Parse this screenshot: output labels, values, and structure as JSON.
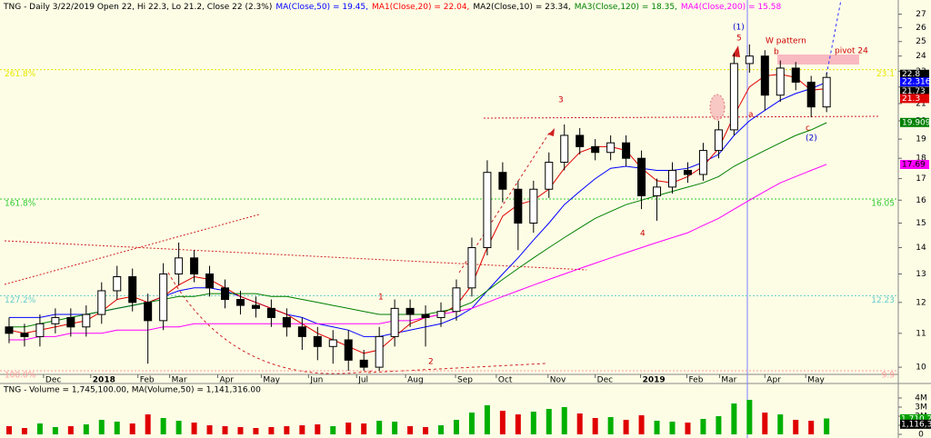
{
  "chart_data": {
    "type": "candlestick",
    "log_scale": true,
    "header_items": [
      {
        "text": "TNG - Daily 3/22/2019 Open 22, Hi 22.3, Lo 21.2, Close 22 (2.3%)",
        "color": "#000000"
      },
      {
        "text": "MA(Close,50) = 19.45,",
        "color": "#0000ff"
      },
      {
        "text": "MA1(Close,20) = 22.04,",
        "color": "#ff0000"
      },
      {
        "text": "MA2(Close,10) = 23.34,",
        "color": "#000000"
      },
      {
        "text": "MA3(Close,120) = 18.35,",
        "color": "#008000"
      },
      {
        "text": "MA4(Close,200) = 15.58",
        "color": "#ff00ff"
      }
    ],
    "x": [
      0.2,
      0.54,
      0.88,
      1.22,
      1.56,
      1.9,
      2.24,
      2.58,
      2.92,
      3.26,
      3.6,
      3.94,
      4.28,
      4.62,
      4.96,
      5.3,
      5.64,
      5.98,
      6.32,
      6.66,
      7.0,
      7.34,
      7.68,
      8.02,
      8.36,
      8.7,
      9.04,
      9.38,
      9.72,
      10.06,
      10.4,
      10.74,
      11.08,
      11.42,
      11.76,
      12.1,
      12.44,
      12.78,
      13.12,
      13.46,
      13.8,
      14.14,
      14.48,
      14.82,
      15.16,
      15.5,
      15.84,
      16.18,
      16.52,
      16.86,
      17.2,
      17.54,
      17.88,
      18.22
    ],
    "open": [
      11.2,
      11.0,
      10.9,
      11.3,
      11.5,
      11.2,
      11.6,
      12.4,
      12.9,
      12.0,
      11.4,
      13.0,
      13.6,
      13.0,
      12.5,
      12.1,
      11.9,
      11.8,
      11.5,
      11.2,
      10.9,
      10.6,
      10.8,
      10.2,
      10.0,
      10.9,
      11.8,
      11.6,
      11.5,
      11.7,
      12.5,
      14.0,
      17.3,
      16.5,
      15.0,
      16.5,
      17.8,
      19.2,
      18.6,
      18.3,
      18.8,
      18.0,
      16.2,
      16.6,
      17.4,
      17.2,
      18.4,
      19.5,
      23.5,
      24.0,
      21.5,
      23.2,
      22.3,
      20.8
    ],
    "high": [
      11.5,
      11.3,
      11.6,
      11.8,
      11.8,
      11.9,
      12.7,
      13.3,
      13.2,
      12.3,
      13.4,
      14.2,
      13.9,
      13.3,
      12.8,
      12.4,
      12.2,
      12.1,
      11.8,
      11.5,
      11.2,
      11.1,
      11.1,
      10.5,
      11.2,
      12.1,
      12.1,
      11.9,
      12.0,
      12.8,
      14.4,
      17.9,
      17.8,
      16.9,
      16.9,
      18.3,
      19.8,
      19.6,
      19.0,
      19.2,
      19.2,
      18.4,
      17.0,
      17.8,
      17.8,
      18.8,
      20.0,
      24.2,
      24.8,
      24.4,
      23.7,
      23.6,
      22.7,
      22.9
    ],
    "low": [
      10.7,
      10.6,
      10.6,
      11.0,
      10.9,
      10.9,
      11.3,
      12.1,
      11.7,
      10.1,
      11.1,
      12.6,
      12.7,
      12.2,
      11.8,
      11.6,
      11.5,
      11.2,
      10.9,
      10.5,
      10.2,
      10.1,
      9.9,
      9.9,
      9.9,
      10.6,
      11.2,
      10.6,
      11.2,
      11.4,
      12.2,
      13.7,
      15.9,
      13.9,
      14.6,
      16.1,
      17.4,
      18.2,
      17.9,
      17.9,
      17.6,
      15.6,
      15.1,
      16.3,
      16.8,
      16.9,
      18.0,
      19.2,
      22.9,
      20.6,
      21.1,
      21.8,
      20.2,
      20.5
    ],
    "close": [
      11.0,
      10.9,
      11.3,
      11.5,
      11.2,
      11.6,
      12.4,
      12.9,
      12.0,
      11.4,
      13.0,
      13.6,
      13.0,
      12.5,
      12.1,
      11.9,
      11.8,
      11.5,
      11.2,
      10.9,
      10.6,
      10.8,
      10.2,
      10.0,
      10.9,
      11.8,
      11.6,
      11.5,
      11.7,
      12.5,
      14.0,
      17.3,
      16.5,
      15.0,
      16.5,
      17.8,
      19.2,
      18.6,
      18.3,
      18.8,
      18.0,
      16.2,
      16.6,
      17.4,
      17.2,
      18.4,
      19.5,
      23.5,
      24.0,
      21.5,
      23.2,
      22.3,
      20.8,
      22.6
    ],
    "series": [
      {
        "name": "MA(Close,50)",
        "color": "#0000ff",
        "values": [
          11.5,
          11.5,
          11.5,
          11.6,
          11.6,
          11.6,
          11.7,
          11.8,
          11.9,
          12.0,
          12.2,
          12.4,
          12.5,
          12.5,
          12.4,
          12.2,
          12.0,
          11.8,
          11.6,
          11.5,
          11.3,
          11.2,
          11.1,
          10.9,
          10.9,
          11.0,
          11.1,
          11.2,
          11.3,
          11.5,
          11.8,
          12.4,
          13.0,
          13.6,
          14.3,
          15.0,
          15.8,
          16.4,
          17.0,
          17.5,
          17.6,
          17.5,
          17.4,
          17.4,
          17.5,
          17.8,
          18.2,
          19.2,
          20.0,
          20.6,
          21.2,
          21.6,
          21.9,
          22.3
        ]
      },
      {
        "name": "MA1(Close,20)",
        "color": "#e00000",
        "values": [
          11.1,
          11.0,
          11.1,
          11.2,
          11.3,
          11.4,
          11.7,
          12.1,
          12.2,
          12.0,
          12.2,
          12.6,
          12.9,
          12.8,
          12.5,
          12.2,
          12.0,
          11.8,
          11.6,
          11.3,
          11.0,
          10.8,
          10.6,
          10.4,
          10.5,
          10.9,
          11.3,
          11.5,
          11.6,
          11.9,
          12.6,
          14.0,
          15.3,
          15.8,
          16.0,
          16.5,
          17.5,
          18.3,
          18.6,
          18.6,
          18.4,
          17.5,
          16.9,
          16.8,
          17.1,
          17.6,
          18.5,
          20.3,
          22.0,
          22.7,
          22.8,
          22.6,
          21.8,
          21.9
        ]
      },
      {
        "name": "MA3(Close,120)",
        "color": "#008000",
        "values": [
          11.2,
          11.2,
          11.3,
          11.4,
          11.5,
          11.6,
          11.7,
          11.8,
          11.9,
          12.0,
          12.1,
          12.2,
          12.2,
          12.3,
          12.3,
          12.3,
          12.3,
          12.2,
          12.2,
          12.1,
          12.0,
          11.9,
          11.8,
          11.7,
          11.6,
          11.6,
          11.6,
          11.6,
          11.7,
          11.8,
          12.0,
          12.4,
          12.8,
          13.2,
          13.6,
          14.0,
          14.4,
          14.8,
          15.2,
          15.5,
          15.8,
          16.0,
          16.2,
          16.4,
          16.6,
          16.8,
          17.1,
          17.6,
          18.0,
          18.4,
          18.8,
          19.2,
          19.5,
          19.9
        ]
      },
      {
        "name": "MA4(Close,200)",
        "color": "#ff00ff",
        "values": [
          10.8,
          10.8,
          10.9,
          10.9,
          11.0,
          11.0,
          11.0,
          11.1,
          11.1,
          11.1,
          11.2,
          11.2,
          11.3,
          11.3,
          11.3,
          11.3,
          11.3,
          11.3,
          11.3,
          11.3,
          11.3,
          11.3,
          11.3,
          11.3,
          11.3,
          11.4,
          11.4,
          11.5,
          11.6,
          11.7,
          11.8,
          12.0,
          12.2,
          12.4,
          12.6,
          12.8,
          13.0,
          13.2,
          13.4,
          13.6,
          13.8,
          14.0,
          14.2,
          14.4,
          14.6,
          14.9,
          15.2,
          15.6,
          16.0,
          16.4,
          16.8,
          17.1,
          17.4,
          17.7
        ]
      }
    ],
    "xlim": [
      0,
      19.8
    ],
    "ylim": [
      9.8,
      28.1
    ],
    "yticks": [
      10,
      11,
      12,
      13,
      14,
      15,
      16,
      17,
      18,
      19,
      20,
      21,
      22,
      23,
      24,
      25,
      26,
      27
    ],
    "xticks": [
      {
        "value": 0.96,
        "label": "Dec"
      },
      {
        "value": 2.0,
        "label": "2018"
      },
      {
        "value": 3.04,
        "label": "Feb"
      },
      {
        "value": 3.74,
        "label": "Mar"
      },
      {
        "value": 4.8,
        "label": "Apr"
      },
      {
        "value": 5.76,
        "label": "May"
      },
      {
        "value": 6.8,
        "label": "Jun"
      },
      {
        "value": 7.86,
        "label": "Jul"
      },
      {
        "value": 8.94,
        "label": "Aug"
      },
      {
        "value": 10.04,
        "label": "Sep"
      },
      {
        "value": 10.94,
        "label": "Oct"
      },
      {
        "value": 12.08,
        "label": "Nov"
      },
      {
        "value": 13.12,
        "label": "Dec"
      },
      {
        "value": 14.12,
        "label": "2019"
      },
      {
        "value": 15.14,
        "label": "Feb"
      },
      {
        "value": 15.86,
        "label": "Mar"
      },
      {
        "value": 16.86,
        "label": "Apr"
      },
      {
        "value": 17.76,
        "label": "May"
      }
    ],
    "fib_levels": [
      {
        "label": "261.8%",
        "value": 23.1,
        "color": "#e8e800"
      },
      {
        "label": "161.8%",
        "value": 16.05,
        "color": "#33cc33"
      },
      {
        "label": "127.2%",
        "value": 12.23,
        "color": "#66cccc"
      },
      {
        "label": "100.0%",
        "value": 9.9,
        "color": "#ff9999"
      }
    ],
    "price_labels": [
      {
        "value": 22.8,
        "color": "#000000",
        "text_color": "#ffffff"
      },
      {
        "value": 22.316,
        "color": "#0000ff",
        "text_color": "#ffffff"
      },
      {
        "value": 21.73,
        "color": "#000000",
        "text_color": "#ffffff"
      },
      {
        "value": 21.3,
        "color": "#e00000",
        "text_color": "#ffffff"
      },
      {
        "value": 19.9092,
        "color": "#008000",
        "text_color": "#ffffff"
      },
      {
        "value": 17.69,
        "color": "#ff00ff",
        "text_color": "#000000"
      }
    ],
    "annotations": [
      {
        "text": "(1)",
        "color": "#0000cc"
      },
      {
        "text": "5",
        "color": "#cc0000"
      },
      {
        "text": "W pattern",
        "color": "#cc0000"
      },
      {
        "text": "b",
        "color": "#cc0000"
      },
      {
        "text": "pivot 24",
        "color": "#cc0000"
      },
      {
        "text": "3",
        "color": "#cc0000"
      },
      {
        "text": "4",
        "color": "#cc0000"
      },
      {
        "text": "1",
        "color": "#cc0000"
      },
      {
        "text": "2",
        "color": "#cc0000"
      },
      {
        "text": "a",
        "color": "#cc0000"
      },
      {
        "text": "c",
        "color": "#cc0000"
      },
      {
        "text": "(2)",
        "color": "#0000cc"
      }
    ],
    "up_color": "#00b000",
    "down_color": "#e00000",
    "volume": {
      "header": "TNG - Volume = 1,745,100.00, MA(Volume,50) = 1,141,316.00",
      "values": [
        900000,
        700000,
        1200000,
        800000,
        900000,
        1100000,
        1600000,
        1400000,
        1200000,
        2200000,
        1800000,
        1500000,
        1300000,
        1000000,
        900000,
        800000,
        700000,
        800000,
        900000,
        1000000,
        1100000,
        900000,
        1300000,
        1200000,
        1500000,
        1400000,
        900000,
        800000,
        1000000,
        1600000,
        2400000,
        3200000,
        2600000,
        2200000,
        2500000,
        2800000,
        3000000,
        2300000,
        1800000,
        1900000,
        1600000,
        2100000,
        1500000,
        1400000,
        1300000,
        1700000,
        2000000,
        3400000,
        3800000,
        2400000,
        2200000,
        1600000,
        1500000,
        1750000
      ],
      "ylim": [
        0,
        4600000
      ],
      "yticks": [
        {
          "value": 0,
          "label": "0"
        },
        {
          "value": 1000000,
          "label": "1M"
        },
        {
          "value": 2000000,
          "label": "2M"
        },
        {
          "value": 3000000,
          "label": "3M"
        },
        {
          "value": 4000000,
          "label": "4M"
        }
      ],
      "price_labels": [
        {
          "value": 1710200,
          "label": "1,710,20",
          "color": "#00a000"
        },
        {
          "value": 1116330,
          "label": "1,116,33",
          "color": "#000000"
        }
      ]
    }
  }
}
